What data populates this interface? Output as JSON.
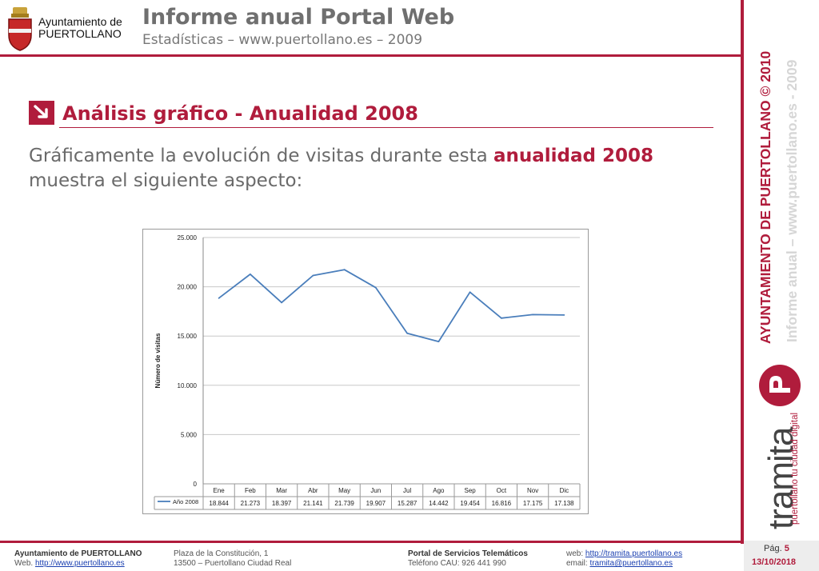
{
  "header": {
    "logo_line1": "Ayuntamiento de",
    "logo_line2": "PUERTOLLANO",
    "title": "Informe anual Portal Web",
    "subtitle": "Estadísticas – www.puertollano.es – 2009"
  },
  "rail": {
    "vertical_title": "AYUNTAMIENTO DE PUERTOLLANO © 2010",
    "vertical_sub": "Informe anual – www.puertollano.es - 2009",
    "tramita_word": "tramita",
    "tramita_tag": "puertollano tu ciudad digital"
  },
  "section": {
    "title": "Análisis gráfico - Anualidad 2008",
    "body_before": "Gráficamente la evolución de visitas durante esta ",
    "body_highlight": "anualidad 2008",
    "body_after": " muestra el siguiente aspecto:"
  },
  "chart_data": {
    "type": "line",
    "ylabel": "Número de visitas",
    "ylim": [
      0,
      25000
    ],
    "y_ticks": [
      "0",
      "5.000",
      "10.000",
      "15.000",
      "20.000",
      "25.000"
    ],
    "y_tick_values": [
      0,
      5000,
      10000,
      15000,
      20000,
      25000
    ],
    "categories": [
      "Ene",
      "Feb",
      "Mar",
      "Abr",
      "May",
      "Jun",
      "Jul",
      "Ago",
      "Sep",
      "Oct",
      "Nov",
      "Dic"
    ],
    "series": [
      {
        "name": "Año 2008",
        "values": [
          18844,
          21273,
          18397,
          21141,
          21739,
          19907,
          15287,
          14442,
          19454,
          16816,
          17175,
          17138
        ],
        "labels": [
          "18.844",
          "21.273",
          "18.397",
          "21.141",
          "21.739",
          "19.907",
          "15.287",
          "14.442",
          "19.454",
          "16.816",
          "17.175",
          "17.138"
        ],
        "color": "#4a7ebb"
      }
    ],
    "grid": true,
    "data_table": true
  },
  "footer": {
    "org": "Ayuntamiento de PUERTOLLANO",
    "web_label": "Web. ",
    "web_url": "http://www.puertollano.es",
    "addr1": "Plaza de la Constitución, 1",
    "addr2": "13500 – Puertollano Ciudad Real",
    "portal": "Portal de Servicios Telemáticos",
    "phone": "Teléfono CAU: 926 441 990",
    "web2_label": "web: ",
    "web2_url": "http://tramita.puertollano.es",
    "email_label": "email: ",
    "email": "tramita@puertollano.es",
    "page_label": "Pág. ",
    "page_num": "5",
    "date": "13/10/2018"
  },
  "colors": {
    "accent": "#b01c3c",
    "series": "#4a7ebb"
  }
}
